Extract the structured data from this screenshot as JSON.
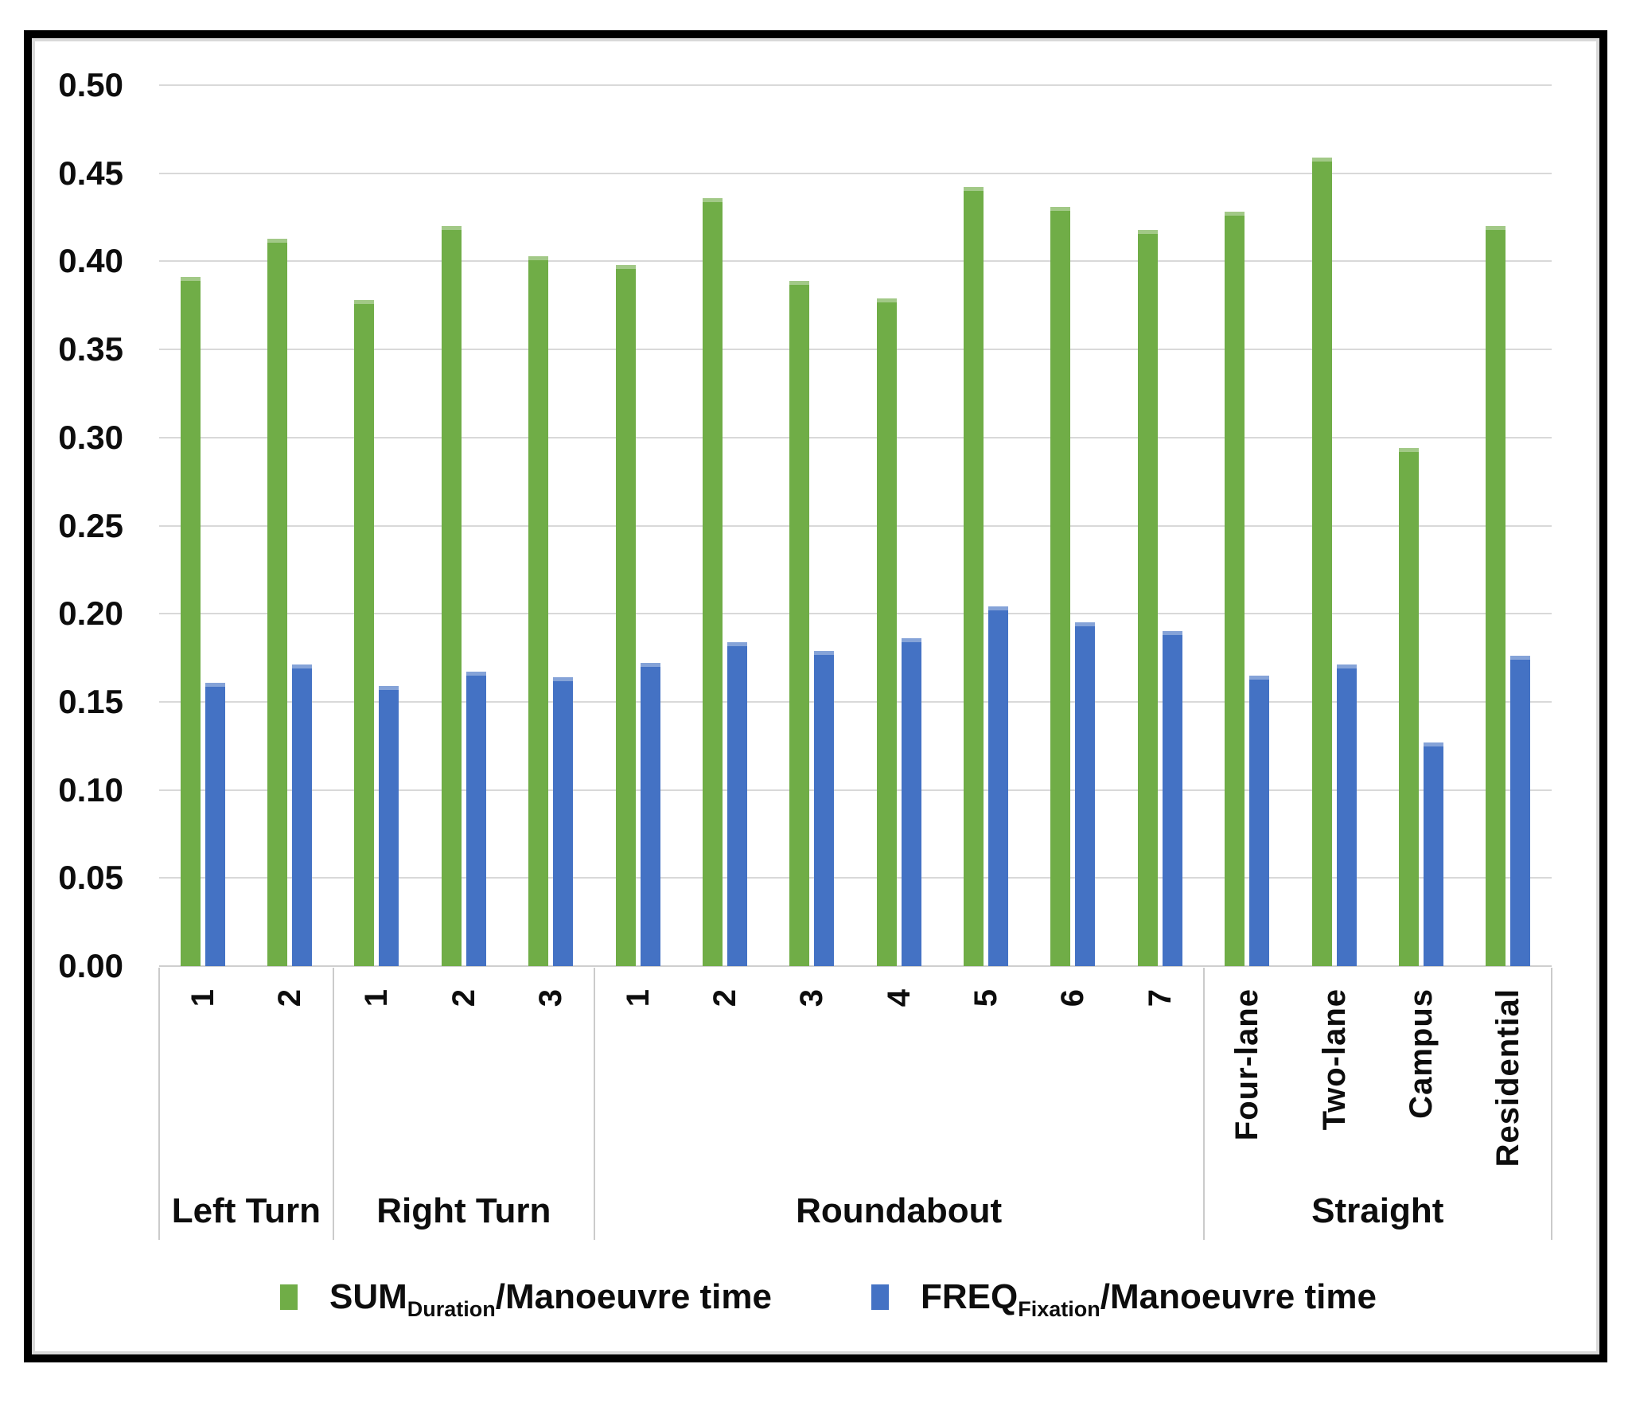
{
  "frame": {
    "border_color": "#000000",
    "inner_border_color": "#d9d9d9",
    "background": "#ffffff"
  },
  "chart_data": {
    "type": "bar",
    "title": "",
    "xlabel": "",
    "ylabel": "",
    "ylim": [
      0,
      0.5
    ],
    "ytick_step": 0.05,
    "ytick_labels": [
      "0.00",
      "0.05",
      "0.10",
      "0.15",
      "0.20",
      "0.25",
      "0.30",
      "0.35",
      "0.40",
      "0.45",
      "0.50"
    ],
    "grid": true,
    "gridline_color": "#d9d9d9",
    "bar_colors": {
      "sum_duration": "#70AD47",
      "freq_fixation": "#4472C4"
    },
    "groups": [
      {
        "label": "Left Turn",
        "categories": [
          "1",
          "2"
        ]
      },
      {
        "label": "Right Turn",
        "categories": [
          "1",
          "2",
          "3"
        ]
      },
      {
        "label": "Roundabout",
        "categories": [
          "1",
          "2",
          "3",
          "4",
          "5",
          "6",
          "7"
        ]
      },
      {
        "label": "Straight",
        "categories": [
          "Four-lane",
          "Two-lane",
          "Campus",
          "Residential"
        ]
      }
    ],
    "series": [
      {
        "name": "SUM_Duration/Manoeuvre time",
        "color": "#70AD47",
        "values": [
          0.391,
          0.413,
          0.378,
          0.42,
          0.403,
          0.398,
          0.436,
          0.389,
          0.379,
          0.442,
          0.431,
          0.418,
          0.428,
          0.459,
          0.294,
          0.42
        ]
      },
      {
        "name": "FREQ_Fixation/Manoeuvre time",
        "color": "#4472C4",
        "values": [
          0.161,
          0.171,
          0.159,
          0.167,
          0.164,
          0.172,
          0.184,
          0.179,
          0.186,
          0.204,
          0.195,
          0.19,
          0.165,
          0.171,
          0.127,
          0.176
        ]
      }
    ],
    "legend": {
      "position": "bottom",
      "items": [
        {
          "prefix": "SUM",
          "subscript": "Duration",
          "suffix": "/Manoeuvre time",
          "color": "#70AD47"
        },
        {
          "prefix": "FREQ",
          "subscript": "Fixation",
          "suffix": "/Manoeuvre time",
          "color": "#4472C4"
        }
      ]
    }
  }
}
